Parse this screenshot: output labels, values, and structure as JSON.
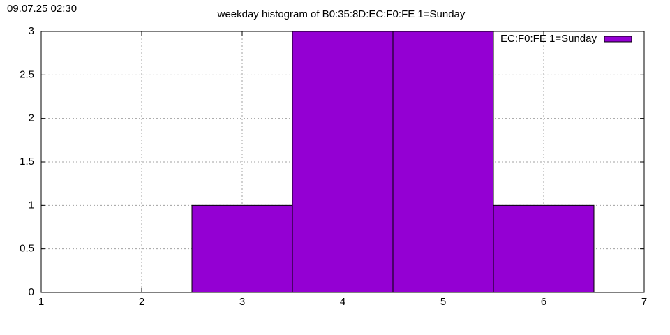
{
  "chart_data": {
    "type": "histogram",
    "title": "weekday histogram of B0:35:8D:EC:F0:FE 1=Sunday",
    "timestamp": "09.07.25 02:30",
    "bins": [
      2.5,
      3.5,
      4.5,
      5.5,
      6.5
    ],
    "series": [
      {
        "name": "EC:F0:FE 1=Sunday",
        "color": "#9400d3",
        "values": [
          1,
          3,
          3,
          1
        ]
      }
    ],
    "xlim": [
      1,
      7
    ],
    "xticks": [
      1,
      2,
      3,
      4,
      5,
      6,
      7
    ],
    "ylim": [
      0,
      3
    ],
    "yticks": [
      0,
      0.5,
      1,
      1.5,
      2,
      2.5,
      3
    ],
    "grid": true,
    "legend": "top-right"
  }
}
